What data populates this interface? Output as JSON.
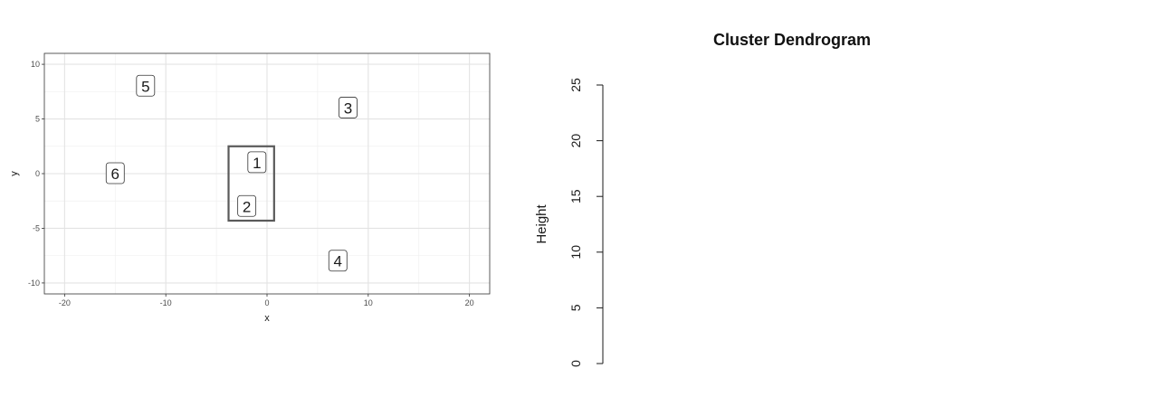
{
  "chart_data": [
    {
      "type": "scatter",
      "title": "",
      "xlabel": "x",
      "ylabel": "y",
      "xlim": [
        -22,
        22
      ],
      "ylim": [
        -11,
        11
      ],
      "x_ticks": [
        -20,
        -10,
        0,
        10,
        20
      ],
      "y_ticks": [
        -10,
        -5,
        0,
        5,
        10
      ],
      "grid": true,
      "points": [
        {
          "label": "1",
          "x": -1,
          "y": 1
        },
        {
          "label": "2",
          "x": -2,
          "y": -3
        },
        {
          "label": "3",
          "x": 8,
          "y": 6
        },
        {
          "label": "4",
          "x": 7,
          "y": -8
        },
        {
          "label": "5",
          "x": -12,
          "y": 8
        },
        {
          "label": "6",
          "x": -15,
          "y": 0
        }
      ],
      "highlight_box": {
        "x": [
          -3.8,
          0.7
        ],
        "y": [
          -4.3,
          2.5
        ]
      }
    },
    {
      "type": "dendrogram",
      "title": "Cluster Dendrogram",
      "ylabel": "Height",
      "ylim": [
        0,
        25
      ],
      "y_ticks": [
        0,
        5,
        10,
        15,
        20,
        25
      ]
    }
  ]
}
